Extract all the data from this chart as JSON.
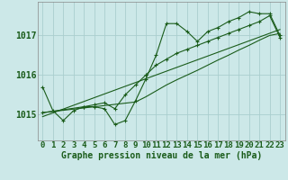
{
  "x": [
    0,
    1,
    2,
    3,
    4,
    5,
    6,
    7,
    8,
    9,
    10,
    11,
    12,
    13,
    14,
    15,
    16,
    17,
    18,
    19,
    20,
    21,
    22,
    23
  ],
  "line1": [
    1015.7,
    1015.1,
    1014.85,
    1015.1,
    1015.2,
    1015.2,
    1015.15,
    1014.75,
    1014.85,
    1015.35,
    1015.9,
    1016.5,
    1017.3,
    1017.3,
    1017.1,
    1016.85,
    1017.1,
    1017.2,
    1017.35,
    1017.45,
    1017.6,
    1017.55,
    1017.55,
    1017.0
  ],
  "line2": [
    1015.05,
    1015.08,
    1015.11,
    1015.14,
    1015.17,
    1015.2,
    1015.23,
    1015.26,
    1015.29,
    1015.32,
    1015.45,
    1015.6,
    1015.75,
    1015.88,
    1016.0,
    1016.12,
    1016.25,
    1016.38,
    1016.5,
    1016.63,
    1016.75,
    1016.88,
    1017.0,
    1017.05
  ],
  "line3_x": [
    0,
    4,
    5,
    6,
    7,
    8,
    9,
    10,
    11,
    12,
    13,
    14,
    15,
    16,
    17,
    18,
    19,
    20,
    21,
    22,
    23
  ],
  "line3_y": [
    1015.05,
    1015.2,
    1015.25,
    1015.3,
    1015.15,
    1015.5,
    1015.75,
    1016.0,
    1016.25,
    1016.4,
    1016.55,
    1016.65,
    1016.75,
    1016.85,
    1016.95,
    1017.05,
    1017.15,
    1017.25,
    1017.35,
    1017.5,
    1016.95
  ],
  "line4_x": [
    0,
    23
  ],
  "line4_y": [
    1014.95,
    1017.15
  ],
  "background_color": "#cce8e8",
  "grid_color": "#aacece",
  "line_color": "#1a5c1a",
  "xlabel": "Graphe pression niveau de la mer (hPa)",
  "ylabel_ticks": [
    1015,
    1016,
    1017
  ],
  "xlim": [
    -0.5,
    23.5
  ],
  "ylim": [
    1014.35,
    1017.85
  ],
  "tick_fontsize": 6.5
}
